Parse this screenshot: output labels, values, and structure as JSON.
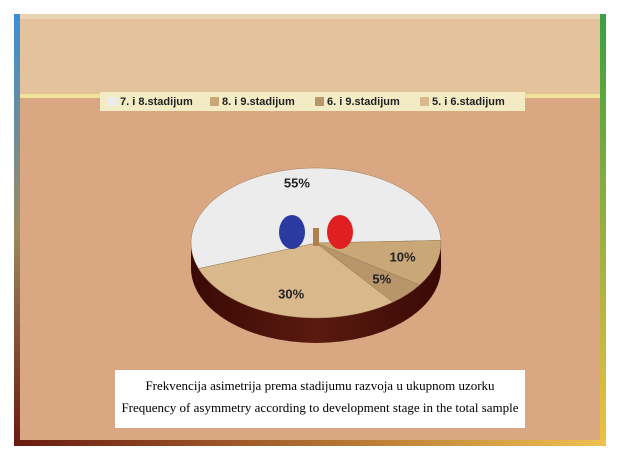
{
  "chart_data": {
    "type": "pie",
    "caption": [
      "Frekvencija asimetrija prema stadijumu razvoja u ukupnom uzorku",
      "Frequency of asymmetry according to development stage in the total sample"
    ],
    "categories": [
      "7. i 8.stadijum",
      "8. i 9.stadijum",
      "6. i 9.stadijum",
      "5. i 6.stadijum"
    ],
    "values": [
      55,
      10,
      5,
      30
    ],
    "value_labels": [
      "55%",
      "10%",
      "5%",
      "30%"
    ],
    "colors": [
      "#ececec",
      "#c9a777",
      "#b8956a",
      "#d9b98c"
    ],
    "legend": "top"
  }
}
